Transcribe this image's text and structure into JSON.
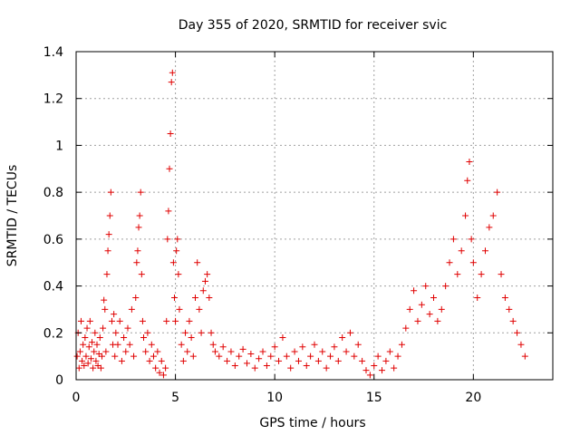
{
  "chart_data": {
    "type": "scatter",
    "title": "Day 355 of 2020, SRMTID for receiver svic",
    "xlabel": "GPS time / hours",
    "ylabel": "SRMTID / TECUs",
    "xlim": [
      0,
      24
    ],
    "ylim": [
      0,
      1.4
    ],
    "grid": true,
    "marker": "+",
    "marker_color": "#e00000",
    "x_ticks": [
      0,
      5,
      10,
      15,
      20
    ],
    "x_tick_labels": [
      "0",
      "5",
      "10",
      "15",
      "20"
    ],
    "y_ticks": [
      0,
      0.2,
      0.4,
      0.6,
      0.8,
      1.0,
      1.2,
      1.4
    ],
    "y_tick_labels": [
      "0",
      "0.2",
      "0.4",
      "0.6",
      "0.8",
      "1",
      "1.2",
      "1.4"
    ],
    "series": [
      {
        "name": "SRMTID",
        "points": [
          [
            0.05,
            0.1
          ],
          [
            0.1,
            0.2
          ],
          [
            0.15,
            0.05
          ],
          [
            0.2,
            0.12
          ],
          [
            0.25,
            0.25
          ],
          [
            0.3,
            0.08
          ],
          [
            0.35,
            0.15
          ],
          [
            0.4,
            0.06
          ],
          [
            0.45,
            0.18
          ],
          [
            0.5,
            0.1
          ],
          [
            0.55,
            0.22
          ],
          [
            0.6,
            0.07
          ],
          [
            0.65,
            0.14
          ],
          [
            0.7,
            0.25
          ],
          [
            0.75,
            0.09
          ],
          [
            0.8,
            0.16
          ],
          [
            0.85,
            0.05
          ],
          [
            0.9,
            0.12
          ],
          [
            0.95,
            0.2
          ],
          [
            1.0,
            0.08
          ],
          [
            1.05,
            0.15
          ],
          [
            1.1,
            0.06
          ],
          [
            1.15,
            0.11
          ],
          [
            1.2,
            0.18
          ],
          [
            1.25,
            0.05
          ],
          [
            1.3,
            0.1
          ],
          [
            1.35,
            0.22
          ],
          [
            1.4,
            0.34
          ],
          [
            1.45,
            0.3
          ],
          [
            1.5,
            0.12
          ],
          [
            1.55,
            0.45
          ],
          [
            1.6,
            0.55
          ],
          [
            1.65,
            0.62
          ],
          [
            1.7,
            0.7
          ],
          [
            1.75,
            0.8
          ],
          [
            1.8,
            0.25
          ],
          [
            1.85,
            0.15
          ],
          [
            1.9,
            0.28
          ],
          [
            1.95,
            0.1
          ],
          [
            2.0,
            0.2
          ],
          [
            2.1,
            0.15
          ],
          [
            2.2,
            0.25
          ],
          [
            2.3,
            0.08
          ],
          [
            2.4,
            0.18
          ],
          [
            2.5,
            0.12
          ],
          [
            2.6,
            0.22
          ],
          [
            2.7,
            0.15
          ],
          [
            2.8,
            0.3
          ],
          [
            2.9,
            0.1
          ],
          [
            3.0,
            0.35
          ],
          [
            3.05,
            0.5
          ],
          [
            3.1,
            0.55
          ],
          [
            3.15,
            0.65
          ],
          [
            3.2,
            0.7
          ],
          [
            3.25,
            0.8
          ],
          [
            3.3,
            0.45
          ],
          [
            3.35,
            0.25
          ],
          [
            3.4,
            0.18
          ],
          [
            3.5,
            0.12
          ],
          [
            3.6,
            0.2
          ],
          [
            3.7,
            0.08
          ],
          [
            3.8,
            0.15
          ],
          [
            3.9,
            0.1
          ],
          [
            4.0,
            0.05
          ],
          [
            4.1,
            0.12
          ],
          [
            4.2,
            0.03
          ],
          [
            4.3,
            0.08
          ],
          [
            4.4,
            0.02
          ],
          [
            4.5,
            0.05
          ],
          [
            4.55,
            0.25
          ],
          [
            4.6,
            0.6
          ],
          [
            4.65,
            0.72
          ],
          [
            4.7,
            0.9
          ],
          [
            4.75,
            1.05
          ],
          [
            4.8,
            1.27
          ],
          [
            4.85,
            1.31
          ],
          [
            4.9,
            0.5
          ],
          [
            4.95,
            0.35
          ],
          [
            5.0,
            0.25
          ],
          [
            5.05,
            0.55
          ],
          [
            5.1,
            0.6
          ],
          [
            5.15,
            0.45
          ],
          [
            5.2,
            0.3
          ],
          [
            5.3,
            0.15
          ],
          [
            5.4,
            0.08
          ],
          [
            5.5,
            0.2
          ],
          [
            5.6,
            0.12
          ],
          [
            5.7,
            0.25
          ],
          [
            5.8,
            0.18
          ],
          [
            5.9,
            0.1
          ],
          [
            6.0,
            0.35
          ],
          [
            6.1,
            0.5
          ],
          [
            6.2,
            0.3
          ],
          [
            6.3,
            0.2
          ],
          [
            6.4,
            0.38
          ],
          [
            6.5,
            0.42
          ],
          [
            6.6,
            0.45
          ],
          [
            6.7,
            0.35
          ],
          [
            6.8,
            0.2
          ],
          [
            6.9,
            0.15
          ],
          [
            7.0,
            0.12
          ],
          [
            7.2,
            0.1
          ],
          [
            7.4,
            0.14
          ],
          [
            7.6,
            0.08
          ],
          [
            7.8,
            0.12
          ],
          [
            8.0,
            0.06
          ],
          [
            8.2,
            0.1
          ],
          [
            8.4,
            0.13
          ],
          [
            8.6,
            0.07
          ],
          [
            8.8,
            0.11
          ],
          [
            9.0,
            0.05
          ],
          [
            9.2,
            0.09
          ],
          [
            9.4,
            0.12
          ],
          [
            9.6,
            0.06
          ],
          [
            9.8,
            0.1
          ],
          [
            10.0,
            0.14
          ],
          [
            10.2,
            0.08
          ],
          [
            10.4,
            0.18
          ],
          [
            10.6,
            0.1
          ],
          [
            10.8,
            0.05
          ],
          [
            11.0,
            0.12
          ],
          [
            11.2,
            0.08
          ],
          [
            11.4,
            0.14
          ],
          [
            11.6,
            0.06
          ],
          [
            11.8,
            0.1
          ],
          [
            12.0,
            0.15
          ],
          [
            12.2,
            0.08
          ],
          [
            12.4,
            0.12
          ],
          [
            12.6,
            0.05
          ],
          [
            12.8,
            0.1
          ],
          [
            13.0,
            0.14
          ],
          [
            13.2,
            0.08
          ],
          [
            13.4,
            0.18
          ],
          [
            13.6,
            0.12
          ],
          [
            13.8,
            0.2
          ],
          [
            14.0,
            0.1
          ],
          [
            14.2,
            0.15
          ],
          [
            14.4,
            0.08
          ],
          [
            14.6,
            0.04
          ],
          [
            14.8,
            0.02
          ],
          [
            15.0,
            0.06
          ],
          [
            15.2,
            0.1
          ],
          [
            15.4,
            0.04
          ],
          [
            15.6,
            0.08
          ],
          [
            15.8,
            0.12
          ],
          [
            16.0,
            0.05
          ],
          [
            16.2,
            0.1
          ],
          [
            16.4,
            0.15
          ],
          [
            16.6,
            0.22
          ],
          [
            16.8,
            0.3
          ],
          [
            17.0,
            0.38
          ],
          [
            17.2,
            0.25
          ],
          [
            17.4,
            0.32
          ],
          [
            17.6,
            0.4
          ],
          [
            17.8,
            0.28
          ],
          [
            18.0,
            0.35
          ],
          [
            18.2,
            0.25
          ],
          [
            18.4,
            0.3
          ],
          [
            18.6,
            0.4
          ],
          [
            18.8,
            0.5
          ],
          [
            19.0,
            0.6
          ],
          [
            19.2,
            0.45
          ],
          [
            19.4,
            0.55
          ],
          [
            19.6,
            0.7
          ],
          [
            19.7,
            0.85
          ],
          [
            19.8,
            0.93
          ],
          [
            19.9,
            0.6
          ],
          [
            20.0,
            0.5
          ],
          [
            20.2,
            0.35
          ],
          [
            20.4,
            0.45
          ],
          [
            20.6,
            0.55
          ],
          [
            20.8,
            0.65
          ],
          [
            21.0,
            0.7
          ],
          [
            21.2,
            0.8
          ],
          [
            21.4,
            0.45
          ],
          [
            21.6,
            0.35
          ],
          [
            21.8,
            0.3
          ],
          [
            22.0,
            0.25
          ],
          [
            22.2,
            0.2
          ],
          [
            22.4,
            0.15
          ],
          [
            22.6,
            0.1
          ]
        ]
      }
    ]
  }
}
